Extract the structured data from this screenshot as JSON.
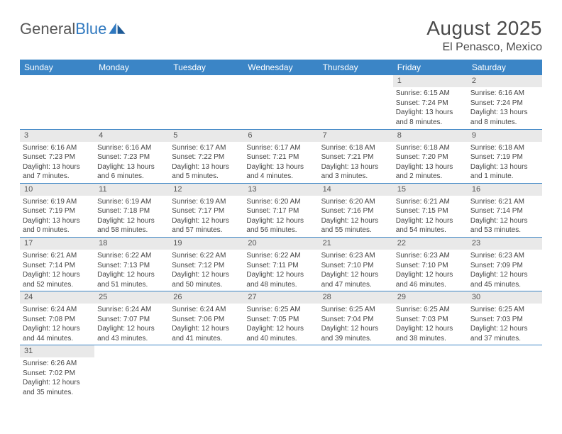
{
  "logo": {
    "text1": "General",
    "text2": "Blue"
  },
  "title": "August 2025",
  "location": "El Penasco, Mexico",
  "colors": {
    "header_bg": "#3b85c6",
    "header_text": "#ffffff",
    "daynum_bg": "#e9e9e9",
    "cell_border": "#3b85c6",
    "body_text": "#444444",
    "title_text": "#4a4a4a"
  },
  "dayNames": [
    "Sunday",
    "Monday",
    "Tuesday",
    "Wednesday",
    "Thursday",
    "Friday",
    "Saturday"
  ],
  "startOffset": 5,
  "days": [
    {
      "n": 1,
      "sunrise": "6:15 AM",
      "sunset": "7:24 PM",
      "daylight": "13 hours and 8 minutes."
    },
    {
      "n": 2,
      "sunrise": "6:16 AM",
      "sunset": "7:24 PM",
      "daylight": "13 hours and 8 minutes."
    },
    {
      "n": 3,
      "sunrise": "6:16 AM",
      "sunset": "7:23 PM",
      "daylight": "13 hours and 7 minutes."
    },
    {
      "n": 4,
      "sunrise": "6:16 AM",
      "sunset": "7:23 PM",
      "daylight": "13 hours and 6 minutes."
    },
    {
      "n": 5,
      "sunrise": "6:17 AM",
      "sunset": "7:22 PM",
      "daylight": "13 hours and 5 minutes."
    },
    {
      "n": 6,
      "sunrise": "6:17 AM",
      "sunset": "7:21 PM",
      "daylight": "13 hours and 4 minutes."
    },
    {
      "n": 7,
      "sunrise": "6:18 AM",
      "sunset": "7:21 PM",
      "daylight": "13 hours and 3 minutes."
    },
    {
      "n": 8,
      "sunrise": "6:18 AM",
      "sunset": "7:20 PM",
      "daylight": "13 hours and 2 minutes."
    },
    {
      "n": 9,
      "sunrise": "6:18 AM",
      "sunset": "7:19 PM",
      "daylight": "13 hours and 1 minute."
    },
    {
      "n": 10,
      "sunrise": "6:19 AM",
      "sunset": "7:19 PM",
      "daylight": "13 hours and 0 minutes."
    },
    {
      "n": 11,
      "sunrise": "6:19 AM",
      "sunset": "7:18 PM",
      "daylight": "12 hours and 58 minutes."
    },
    {
      "n": 12,
      "sunrise": "6:19 AM",
      "sunset": "7:17 PM",
      "daylight": "12 hours and 57 minutes."
    },
    {
      "n": 13,
      "sunrise": "6:20 AM",
      "sunset": "7:17 PM",
      "daylight": "12 hours and 56 minutes."
    },
    {
      "n": 14,
      "sunrise": "6:20 AM",
      "sunset": "7:16 PM",
      "daylight": "12 hours and 55 minutes."
    },
    {
      "n": 15,
      "sunrise": "6:21 AM",
      "sunset": "7:15 PM",
      "daylight": "12 hours and 54 minutes."
    },
    {
      "n": 16,
      "sunrise": "6:21 AM",
      "sunset": "7:14 PM",
      "daylight": "12 hours and 53 minutes."
    },
    {
      "n": 17,
      "sunrise": "6:21 AM",
      "sunset": "7:14 PM",
      "daylight": "12 hours and 52 minutes."
    },
    {
      "n": 18,
      "sunrise": "6:22 AM",
      "sunset": "7:13 PM",
      "daylight": "12 hours and 51 minutes."
    },
    {
      "n": 19,
      "sunrise": "6:22 AM",
      "sunset": "7:12 PM",
      "daylight": "12 hours and 50 minutes."
    },
    {
      "n": 20,
      "sunrise": "6:22 AM",
      "sunset": "7:11 PM",
      "daylight": "12 hours and 48 minutes."
    },
    {
      "n": 21,
      "sunrise": "6:23 AM",
      "sunset": "7:10 PM",
      "daylight": "12 hours and 47 minutes."
    },
    {
      "n": 22,
      "sunrise": "6:23 AM",
      "sunset": "7:10 PM",
      "daylight": "12 hours and 46 minutes."
    },
    {
      "n": 23,
      "sunrise": "6:23 AM",
      "sunset": "7:09 PM",
      "daylight": "12 hours and 45 minutes."
    },
    {
      "n": 24,
      "sunrise": "6:24 AM",
      "sunset": "7:08 PM",
      "daylight": "12 hours and 44 minutes."
    },
    {
      "n": 25,
      "sunrise": "6:24 AM",
      "sunset": "7:07 PM",
      "daylight": "12 hours and 43 minutes."
    },
    {
      "n": 26,
      "sunrise": "6:24 AM",
      "sunset": "7:06 PM",
      "daylight": "12 hours and 41 minutes."
    },
    {
      "n": 27,
      "sunrise": "6:25 AM",
      "sunset": "7:05 PM",
      "daylight": "12 hours and 40 minutes."
    },
    {
      "n": 28,
      "sunrise": "6:25 AM",
      "sunset": "7:04 PM",
      "daylight": "12 hours and 39 minutes."
    },
    {
      "n": 29,
      "sunrise": "6:25 AM",
      "sunset": "7:03 PM",
      "daylight": "12 hours and 38 minutes."
    },
    {
      "n": 30,
      "sunrise": "6:25 AM",
      "sunset": "7:03 PM",
      "daylight": "12 hours and 37 minutes."
    },
    {
      "n": 31,
      "sunrise": "6:26 AM",
      "sunset": "7:02 PM",
      "daylight": "12 hours and 35 minutes."
    }
  ],
  "labels": {
    "sunrise": "Sunrise:",
    "sunset": "Sunset:",
    "daylight": "Daylight:"
  }
}
